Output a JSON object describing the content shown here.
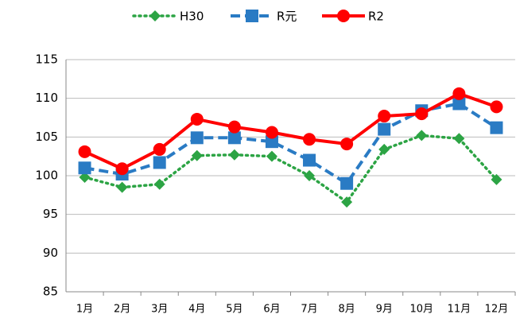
{
  "chart_data": {
    "type": "line",
    "categories": [
      "1月",
      "2月",
      "3月",
      "4月",
      "5月",
      "6月",
      "7月",
      "8月",
      "9月",
      "10月",
      "11月",
      "12月"
    ],
    "series": [
      {
        "name": "H30",
        "color": "#2ca444",
        "line_style": "dotted",
        "marker": "diamond",
        "values": [
          99.8,
          98.5,
          98.9,
          102.6,
          102.7,
          102.5,
          100.0,
          96.6,
          103.4,
          105.2,
          104.8,
          99.5
        ]
      },
      {
        "name": "R元",
        "color": "#2a7bc4",
        "line_style": "dashed",
        "marker": "square",
        "values": [
          101.0,
          100.2,
          101.7,
          104.9,
          104.9,
          104.4,
          102.0,
          99.0,
          106.0,
          108.4,
          109.3,
          106.2
        ]
      },
      {
        "name": "R2",
        "color": "#ff0000",
        "line_style": "solid",
        "marker": "circle",
        "values": [
          103.1,
          100.9,
          103.4,
          107.3,
          106.3,
          105.6,
          104.7,
          104.1,
          107.7,
          108.0,
          110.6,
          108.9
        ]
      }
    ],
    "ylim": [
      85,
      115
    ],
    "yticks": [
      85,
      90,
      95,
      100,
      105,
      110,
      115
    ],
    "grid": true,
    "legend": "top"
  }
}
